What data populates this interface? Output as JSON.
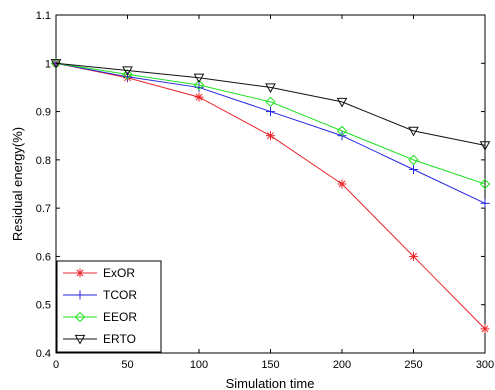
{
  "chart_data": {
    "type": "line",
    "title": "",
    "xlabel": "Simulation time",
    "ylabel": "Residual energy(%)",
    "xlim": [
      0,
      300
    ],
    "ylim": [
      0.4,
      1.1
    ],
    "x_ticks": [
      "0",
      "50",
      "100",
      "150",
      "200",
      "250",
      "300"
    ],
    "y_ticks": [
      "0.4",
      "0.5",
      "0.6",
      "0.7",
      "0.8",
      "0.9",
      "1",
      "1.1"
    ],
    "grid": false,
    "legend_position": "bottom-left",
    "x": [
      0,
      50,
      100,
      150,
      200,
      250,
      300
    ],
    "series": [
      {
        "name": "ExOR",
        "color": "#e8262b",
        "marker": "asterisk",
        "values": [
          1.0,
          0.97,
          0.93,
          0.85,
          0.75,
          0.6,
          0.45
        ]
      },
      {
        "name": "TCOR",
        "color": "#2626e0",
        "marker": "plus",
        "values": [
          1.0,
          0.972,
          0.95,
          0.9,
          0.85,
          0.78,
          0.71
        ]
      },
      {
        "name": "EEOR",
        "color": "#22e022",
        "marker": "diamond",
        "values": [
          1.0,
          0.977,
          0.955,
          0.92,
          0.86,
          0.8,
          0.75
        ]
      },
      {
        "name": "ERTO",
        "color": "#111111",
        "marker": "triangle-down",
        "values": [
          1.0,
          0.985,
          0.97,
          0.95,
          0.92,
          0.86,
          0.83
        ]
      }
    ]
  }
}
